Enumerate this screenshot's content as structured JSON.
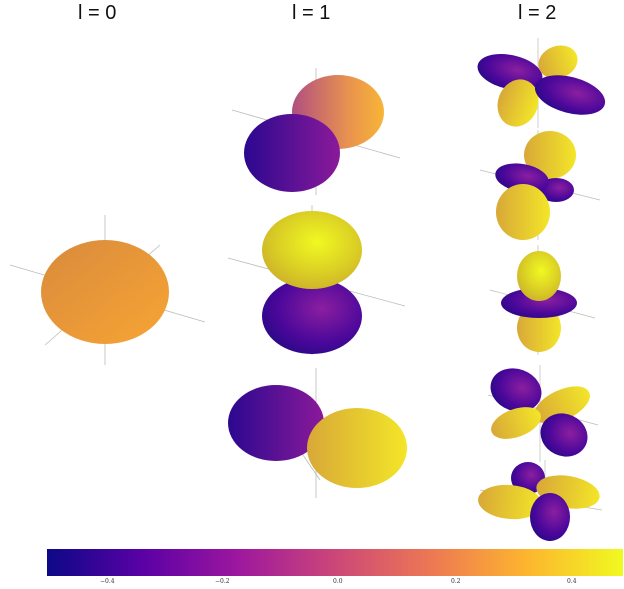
{
  "titles": [
    "l = 0",
    "l = 1",
    "l = 2"
  ],
  "colorbar": {
    "ticks": [
      "−0.4",
      "−0.2",
      "0.0",
      "0.2",
      "0.4"
    ],
    "stops": [
      "#0d0887",
      "#5c01a6",
      "#9c179e",
      "#cc4778",
      "#ed7953",
      "#fdb42f",
      "#f0f921"
    ]
  }
}
